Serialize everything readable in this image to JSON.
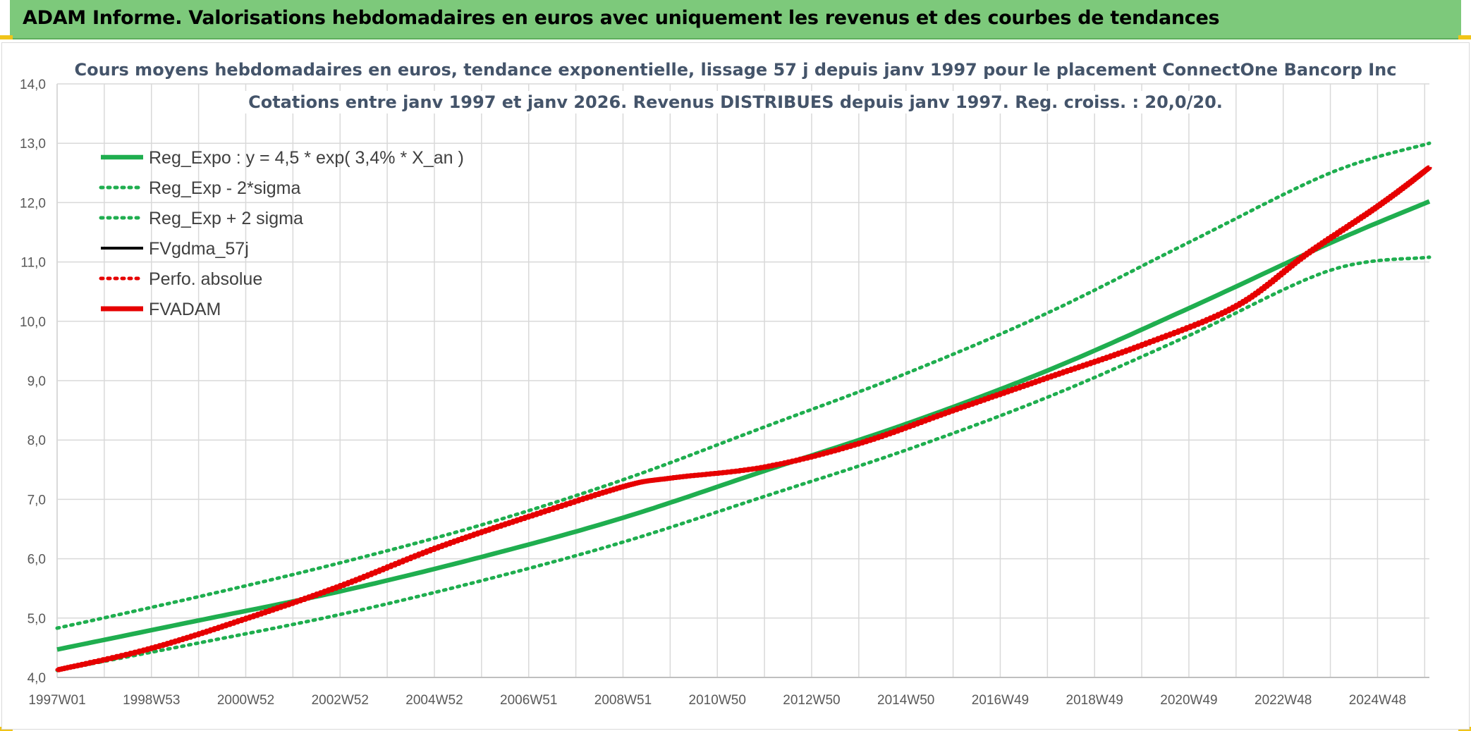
{
  "header": {
    "title": "ADAM Informe. Valorisations hebdomadaires en euros avec uniquement les revenus et des courbes de tendances"
  },
  "colors": {
    "header_bg": "#7dc97b",
    "trend": "#1fae4f",
    "fvadam": "#e60000",
    "grid": "#d9d9d9",
    "title_text": "#44546a"
  },
  "chart_data": {
    "type": "line",
    "title": [
      "Cours moyens hebdomadaires en euros, tendance exponentielle, lissage 57 j depuis janv 1997 pour le placement ConnectOne  Bancorp Inc",
      "Cotations entre janv 1997 et janv 2026. Revenus DISTRIBUES depuis janv 1997. Reg. croiss. : 20,0/20."
    ],
    "xlabel": "",
    "ylabel": "",
    "x_range": [
      1997.0,
      2026.1
    ],
    "ylim": [
      4.0,
      14.0
    ],
    "grid": true,
    "y_ticks": [
      "4,0",
      "5,0",
      "6,0",
      "7,0",
      "8,0",
      "9,0",
      "10,0",
      "11,0",
      "12,0",
      "13,0",
      "14,0"
    ],
    "x_ticks": [
      {
        "label": "1997W01",
        "x": 1997.0
      },
      {
        "label": "1998W53",
        "x": 1999.0
      },
      {
        "label": "2000W52",
        "x": 2001.0
      },
      {
        "label": "2002W52",
        "x": 2003.0
      },
      {
        "label": "2004W52",
        "x": 2005.0
      },
      {
        "label": "2006W51",
        "x": 2007.0
      },
      {
        "label": "2008W51",
        "x": 2009.0
      },
      {
        "label": "2010W50",
        "x": 2011.0
      },
      {
        "label": "2012W50",
        "x": 2013.0
      },
      {
        "label": "2014W50",
        "x": 2015.0
      },
      {
        "label": "2016W49",
        "x": 2017.0
      },
      {
        "label": "2018W49",
        "x": 2019.0
      },
      {
        "label": "2020W49",
        "x": 2021.0
      },
      {
        "label": "2022W48",
        "x": 2023.0
      },
      {
        "label": "2024W48",
        "x": 2025.0
      }
    ],
    "legend_position": "top-left",
    "series": [
      {
        "name": "Reg_Expo : y = 4,5 * exp( 3,4% *  X_an )",
        "style": "solid",
        "color": "#1fae4f",
        "x": [
          1997,
          2000,
          2003,
          2006,
          2009,
          2012,
          2015,
          2018,
          2021,
          2024,
          2026.1
        ],
        "values": [
          4.47,
          4.96,
          5.45,
          6.03,
          6.69,
          7.48,
          8.27,
          9.17,
          10.22,
          11.32,
          12.02
        ]
      },
      {
        "name": "Reg_Exp - 2*sigma",
        "style": "dotted",
        "color": "#1fae4f",
        "x": [
          1997,
          2000,
          2003,
          2006,
          2009,
          2012,
          2015,
          2018,
          2021,
          2024,
          2026.1
        ],
        "values": [
          4.12,
          4.58,
          5.06,
          5.63,
          6.28,
          7.05,
          7.83,
          8.72,
          9.76,
          10.86,
          11.08
        ]
      },
      {
        "name": "Reg_Exp + 2 sigma",
        "style": "dotted",
        "color": "#1fae4f",
        "x": [
          1997,
          2000,
          2003,
          2006,
          2009,
          2012,
          2015,
          2018,
          2021,
          2024,
          2026.1
        ],
        "values": [
          4.83,
          5.36,
          5.93,
          6.57,
          7.33,
          8.22,
          9.12,
          10.14,
          11.33,
          12.5,
          13.0
        ]
      },
      {
        "name": "FVgdma_57j",
        "style": "solid",
        "color": "#000000",
        "x": [
          1997,
          1999,
          2001,
          2003,
          2005,
          2007,
          2009,
          2010,
          2012,
          2014,
          2016,
          2018,
          2020,
          2022,
          2023.5,
          2025,
          2026.1
        ],
        "values": [
          4.13,
          4.5,
          5.0,
          5.55,
          6.18,
          6.72,
          7.22,
          7.36,
          7.55,
          7.95,
          8.51,
          9.06,
          9.61,
          10.27,
          11.15,
          11.95,
          12.6
        ]
      },
      {
        "name": "Perfo. absolue",
        "style": "dotted",
        "color": "#e60000",
        "x": [
          1997,
          1999,
          2001,
          2003,
          2005,
          2007,
          2009,
          2010,
          2012,
          2014,
          2016,
          2018,
          2020,
          2022,
          2023.5,
          2025,
          2026.1
        ],
        "values": [
          4.13,
          4.5,
          5.0,
          5.55,
          6.18,
          6.72,
          7.22,
          7.36,
          7.55,
          7.95,
          8.51,
          9.06,
          9.61,
          10.27,
          11.15,
          11.95,
          12.6
        ]
      },
      {
        "name": "FVADAM",
        "style": "solid",
        "color": "#e60000",
        "x": [
          1997,
          1999,
          2001,
          2003,
          2005,
          2007,
          2009,
          2010,
          2012,
          2014,
          2016,
          2018,
          2020,
          2022,
          2023.5,
          2025,
          2026.1
        ],
        "values": [
          4.13,
          4.5,
          5.0,
          5.55,
          6.18,
          6.72,
          7.22,
          7.36,
          7.55,
          7.95,
          8.51,
          9.06,
          9.61,
          10.27,
          11.15,
          11.95,
          12.6
        ]
      }
    ]
  }
}
